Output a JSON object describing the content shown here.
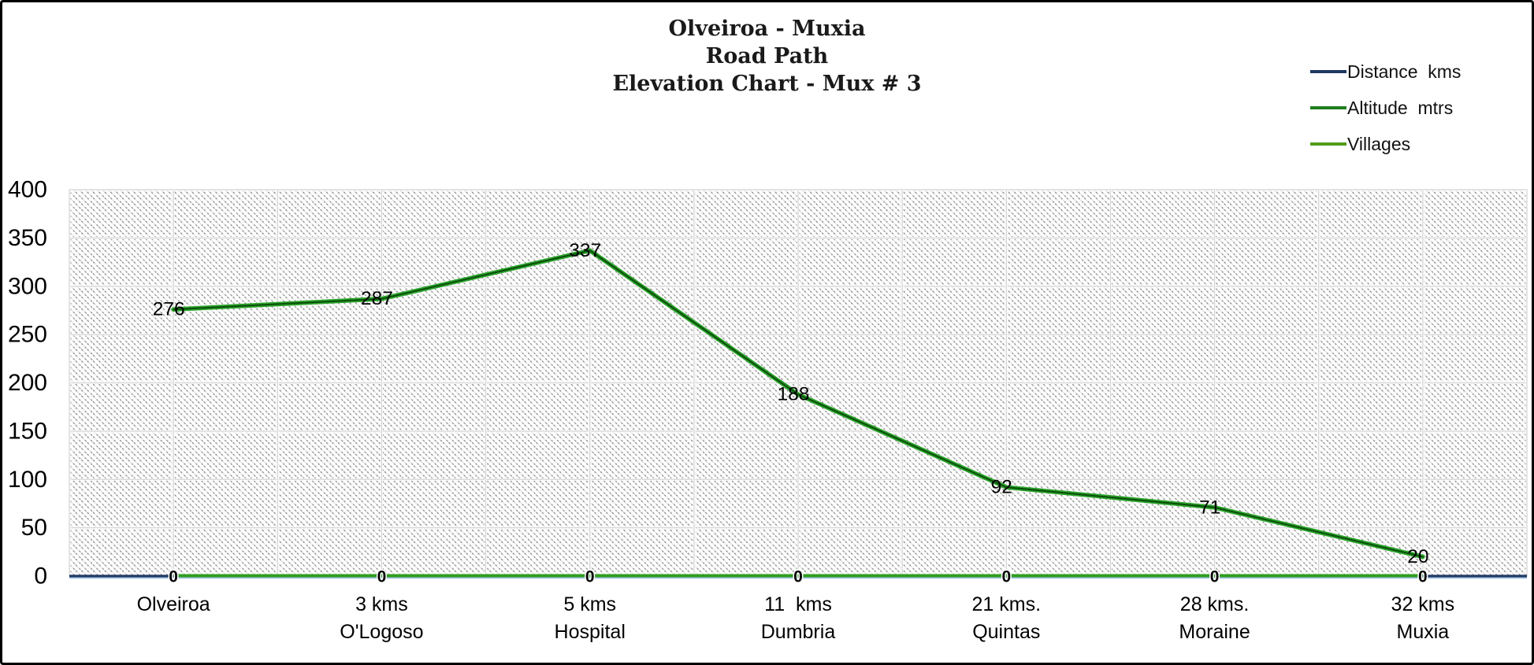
{
  "title": {
    "lines": [
      "Olveiroa - Muxia",
      "Road Path",
      "Elevation Chart - Mux # 3"
    ]
  },
  "legend": {
    "position": "top-right",
    "items": [
      {
        "label": "Distance  kms",
        "color": "#1f3864"
      },
      {
        "label": "Altitude  mtrs",
        "color": "#1e7f1e"
      },
      {
        "label": "Villages",
        "color": "#4f9b1c"
      }
    ]
  },
  "chart_data": {
    "type": "line",
    "title": "Olveiroa - Muxia Road Path Elevation Chart - Mux # 3",
    "categories": [
      {
        "line1": "Olveiroa",
        "line2": ""
      },
      {
        "line1": "3 kms",
        "line2": "O'Logoso"
      },
      {
        "line1": "5 kms",
        "line2": "Hospital"
      },
      {
        "line1": "11  kms",
        "line2": "Dumbria"
      },
      {
        "line1": "21 kms.",
        "line2": "Quintas"
      },
      {
        "line1": "28 kms.",
        "line2": "Moraine"
      },
      {
        "line1": "32 kms",
        "line2": "Muxia"
      }
    ],
    "series": [
      {
        "name": "Distance  kms",
        "color": "#1f3864",
        "values": [
          0,
          0,
          0,
          0,
          0,
          0,
          0
        ],
        "data_labels": false
      },
      {
        "name": "Altitude  mtrs",
        "color": "#1e7f1e",
        "values": [
          276,
          287,
          337,
          188,
          92,
          71,
          20
        ],
        "data_labels": true
      },
      {
        "name": "Villages",
        "color": "#2f9e1f",
        "values": [
          0,
          0,
          0,
          0,
          0,
          0,
          0
        ],
        "data_labels": true
      }
    ],
    "xlabel": "",
    "ylabel": "",
    "ylim": [
      0,
      400
    ],
    "yticks": [
      0,
      50,
      100,
      150,
      200,
      250,
      300,
      350,
      400
    ],
    "grid": "horizontal every 50; vertical every half category; light gray",
    "plot_background": "gray diagonal hatch pattern on white",
    "legend_position": "top-right"
  },
  "colors": {
    "axis_line_blue": "#1f3864",
    "axis_underline_lightblue": "#9dc3e6",
    "altitude_line_outer": "#2aa32a",
    "altitude_line_core": "#0b4d0b",
    "villages_line": "#2f9e1f",
    "gridline": "#d2d2d2",
    "hatch": "#8d8d8d",
    "label_text": "#000000"
  }
}
